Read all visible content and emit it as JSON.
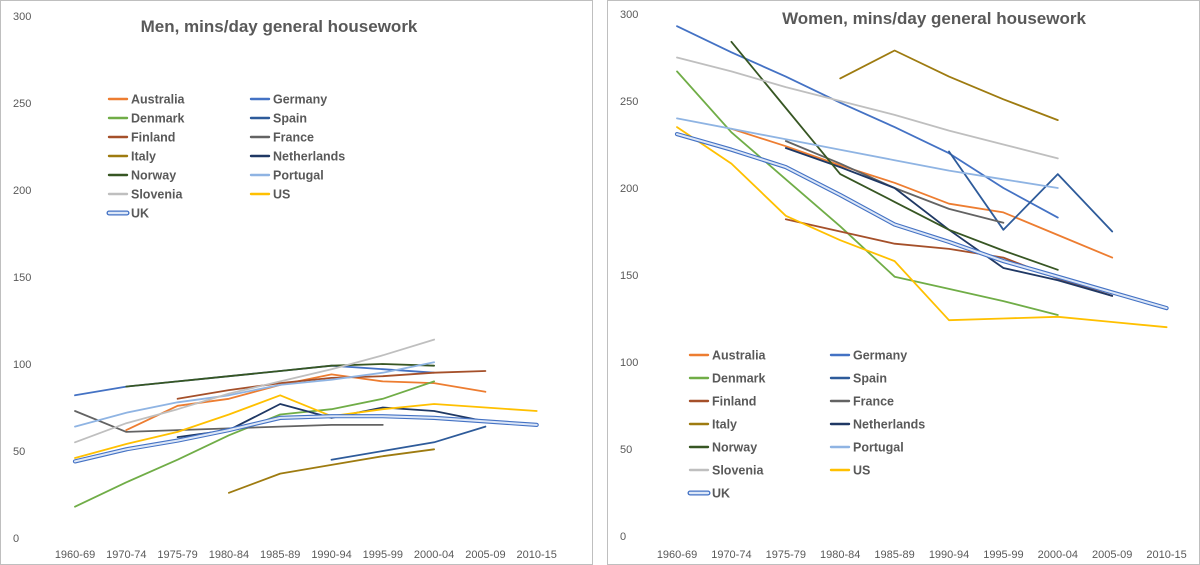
{
  "chart_data": [
    {
      "type": "line",
      "title": "Men, mins/day general housework",
      "categories": [
        "1960-69",
        "1970-74",
        "1975-79",
        "1980-84",
        "1985-89",
        "1990-94",
        "1995-99",
        "2000-04",
        "2005-09",
        "2010-15"
      ],
      "ylim": [
        0,
        300
      ],
      "yticks": [
        0,
        50,
        100,
        150,
        200,
        250,
        300
      ],
      "grid": false,
      "legend_position": "upper-center",
      "series": [
        {
          "name": "Australia",
          "color": "#ED7D31",
          "values": [
            null,
            62,
            76,
            80,
            88,
            94,
            90,
            89,
            84,
            null
          ]
        },
        {
          "name": "Germany",
          "color": "#4472C4",
          "values": [
            82,
            87,
            90,
            93,
            96,
            99,
            97,
            95,
            null,
            null
          ]
        },
        {
          "name": "Denmark",
          "color": "#70AD47",
          "values": [
            18,
            32,
            45,
            59,
            71,
            74,
            80,
            90,
            null,
            null
          ]
        },
        {
          "name": "Spain",
          "color": "#2E5B9A",
          "values": [
            null,
            null,
            null,
            null,
            null,
            45,
            50,
            55,
            64,
            null
          ]
        },
        {
          "name": "Finland",
          "color": "#A5502A",
          "values": [
            null,
            null,
            80,
            85,
            89,
            92,
            93,
            95,
            96,
            null
          ]
        },
        {
          "name": "France",
          "color": "#636363",
          "values": [
            73,
            61,
            62,
            63,
            64,
            65,
            65,
            null,
            null,
            null
          ]
        },
        {
          "name": "Italy",
          "color": "#9E7B10",
          "values": [
            null,
            null,
            null,
            26,
            37,
            42,
            47,
            51,
            null,
            null
          ]
        },
        {
          "name": "Netherlands",
          "color": "#1F3864",
          "values": [
            null,
            null,
            58,
            62,
            77,
            69,
            75,
            73,
            67,
            null
          ]
        },
        {
          "name": "Norway",
          "color": "#375623",
          "values": [
            null,
            87,
            90,
            93,
            96,
            99,
            100,
            99,
            null,
            null
          ]
        },
        {
          "name": "Portugal",
          "color": "#8FB4E3",
          "values": [
            64,
            72,
            78,
            82,
            88,
            91,
            95,
            101,
            null,
            null
          ]
        },
        {
          "name": "Slovenia",
          "color": "#BFBFBF",
          "values": [
            55,
            66,
            74,
            83,
            90,
            97,
            105,
            114,
            null,
            null
          ]
        },
        {
          "name": "US",
          "color": "#FFC000",
          "values": [
            46,
            54,
            61,
            71,
            82,
            70,
            74,
            77,
            75,
            73
          ]
        },
        {
          "name": "UK",
          "color": "#8EAADB",
          "values": [
            44,
            51,
            56,
            62,
            69,
            70,
            70,
            69,
            67,
            65
          ]
        }
      ]
    },
    {
      "type": "line",
      "title": "Women, mins/day general housework",
      "categories": [
        "1960-69",
        "1970-74",
        "1975-79",
        "1980-84",
        "1985-89",
        "1990-94",
        "1995-99",
        "2000-04",
        "2005-09",
        "2010-15"
      ],
      "ylim": [
        0,
        300
      ],
      "yticks": [
        0,
        50,
        100,
        150,
        200,
        250,
        300
      ],
      "grid": false,
      "legend_position": "bottom-left",
      "series": [
        {
          "name": "Australia",
          "color": "#ED7D31",
          "values": [
            null,
            234,
            224,
            213,
            203,
            191,
            186,
            173,
            160,
            null
          ]
        },
        {
          "name": "Germany",
          "color": "#4472C4",
          "values": [
            293,
            278,
            264,
            249,
            235,
            220,
            200,
            183,
            null,
            null
          ]
        },
        {
          "name": "Denmark",
          "color": "#70AD47",
          "values": [
            267,
            232,
            205,
            178,
            149,
            142,
            135,
            127,
            null,
            null
          ]
        },
        {
          "name": "Spain",
          "color": "#2E5B9A",
          "values": [
            null,
            null,
            null,
            null,
            null,
            221,
            176,
            208,
            175,
            null
          ]
        },
        {
          "name": "Finland",
          "color": "#A5502A",
          "values": [
            null,
            null,
            182,
            175,
            168,
            165,
            160,
            148,
            138,
            null
          ]
        },
        {
          "name": "France",
          "color": "#636363",
          "values": [
            null,
            null,
            227,
            214,
            200,
            188,
            180,
            null,
            null,
            null
          ]
        },
        {
          "name": "Italy",
          "color": "#9E7B10",
          "values": [
            null,
            null,
            null,
            263,
            279,
            264,
            251,
            239,
            null,
            null
          ]
        },
        {
          "name": "Netherlands",
          "color": "#1F3864",
          "values": [
            null,
            null,
            223,
            212,
            200,
            176,
            154,
            147,
            138,
            null
          ]
        },
        {
          "name": "Norway",
          "color": "#375623",
          "values": [
            null,
            284,
            246,
            208,
            192,
            176,
            164,
            153,
            null,
            null
          ]
        },
        {
          "name": "Portugal",
          "color": "#8FB4E3",
          "values": [
            240,
            234,
            228,
            222,
            216,
            210,
            205,
            200,
            null,
            null
          ]
        },
        {
          "name": "Slovenia",
          "color": "#BFBFBF",
          "values": [
            275,
            267,
            258,
            250,
            242,
            233,
            225,
            217,
            null,
            null
          ]
        },
        {
          "name": "US",
          "color": "#FFC000",
          "values": [
            235,
            214,
            184,
            170,
            158,
            124,
            125,
            126,
            123,
            120
          ]
        },
        {
          "name": "UK",
          "color": "#8EAADB",
          "values": [
            231,
            222,
            212,
            196,
            179,
            169,
            158,
            149,
            140,
            131
          ]
        }
      ]
    }
  ]
}
